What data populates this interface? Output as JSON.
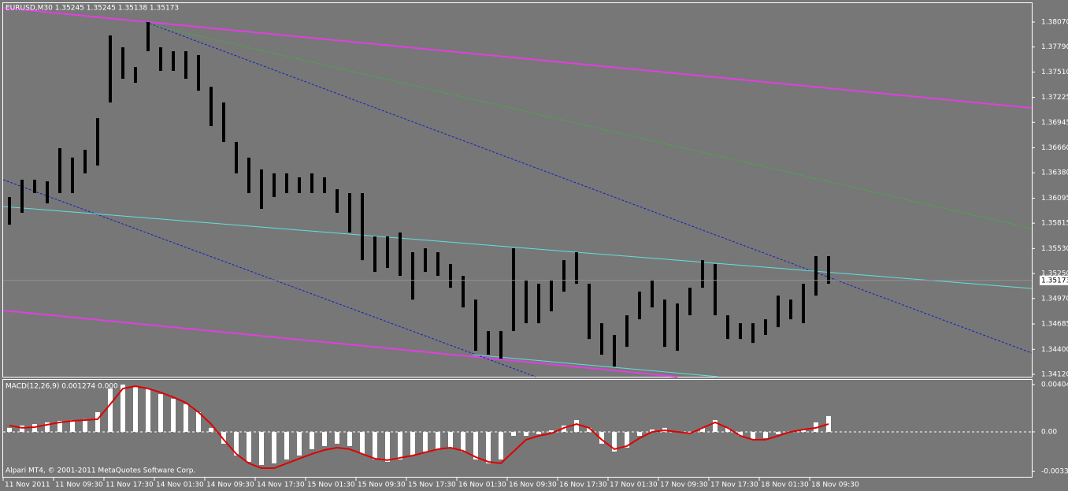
{
  "chart_data": [
    {
      "type": "range",
      "title": "EURUSD,M30  1.35245 1.35245 1.35138 1.35173",
      "color": "#000000",
      "categories": [
        "11 Nov 2011",
        null,
        null,
        null,
        "11 Nov 09:30",
        null,
        null,
        null,
        "11 Nov 17:30",
        null,
        null,
        null,
        "14 Nov 01:30",
        null,
        null,
        null,
        "14 Nov 09:30",
        null,
        null,
        null,
        "14 Nov 17:30",
        null,
        null,
        null,
        "15 Nov 01:30",
        null,
        null,
        null,
        "15 Nov 09:30",
        null,
        null,
        null,
        "15 Nov 17:30",
        null,
        null,
        null,
        "16 Nov 01:30",
        null,
        null,
        null,
        "16 Nov 09:30",
        null,
        null,
        null,
        "16 Nov 17:30",
        null,
        null,
        null,
        "17 Nov 01:30",
        null,
        null,
        null,
        "17 Nov 09:30",
        null,
        null,
        null,
        "17 Nov 17:30",
        null,
        null,
        null,
        "18 Nov 01:30",
        null,
        null,
        null,
        "18 Nov 09:30",
        null
      ],
      "high": [
        1.36108,
        1.36302,
        1.36302,
        1.36284,
        1.36656,
        1.3655,
        1.36638,
        1.36992,
        1.3792,
        1.37787,
        1.37566,
        1.3807,
        1.37787,
        1.37743,
        1.37743,
        1.37699,
        1.37345,
        1.37168,
        1.36726,
        1.3655,
        1.36417,
        1.36373,
        1.36373,
        1.36329,
        1.36373,
        1.36329,
        1.36196,
        1.36152,
        1.36152,
        1.35666,
        1.35666,
        1.3571,
        1.35489,
        1.35533,
        1.35489,
        1.35356,
        1.35224,
        1.34958,
        1.34605,
        1.34605,
        1.35533,
        1.35179,
        1.35135,
        1.35179,
        1.354,
        1.35489,
        1.35135,
        1.34693,
        1.34561,
        1.34782,
        1.35047,
        1.35179,
        1.34958,
        1.34914,
        1.35091,
        1.354,
        1.35356,
        1.34782,
        1.34693,
        1.34693,
        1.34737,
        1.35003,
        1.34958,
        1.35135,
        1.35445,
        1.35445
      ],
      "low": [
        1.35798,
        1.35931,
        1.36152,
        1.36037,
        1.36152,
        1.36152,
        1.36373,
        1.36461,
        1.37168,
        1.37434,
        1.37389,
        1.37743,
        1.37522,
        1.37522,
        1.37434,
        1.37301,
        1.36903,
        1.36726,
        1.36373,
        1.36152,
        1.35975,
        1.36108,
        1.36152,
        1.36152,
        1.36152,
        1.36152,
        1.35931,
        1.3571,
        1.354,
        1.35268,
        1.35312,
        1.35224,
        1.34958,
        1.35268,
        1.35224,
        1.35091,
        1.3487,
        1.34384,
        1.3434,
        1.34295,
        1.34605,
        1.34693,
        1.34693,
        1.34826,
        1.35047,
        1.35135,
        1.34516,
        1.3434,
        1.34207,
        1.34428,
        1.34737,
        1.3487,
        1.34428,
        1.34384,
        1.34782,
        1.35091,
        1.34782,
        1.34516,
        1.34516,
        1.34472,
        1.34561,
        1.34649,
        1.34737,
        1.34693,
        1.35003,
        1.35135
      ],
      "last_price": 1.35173,
      "ylim": [
        1.34093,
        1.38282
      ],
      "yticks": [
        {
          "value": 1.3807,
          "label": "1.38070"
        },
        {
          "value": 1.3779,
          "label": "1.37790"
        },
        {
          "value": 1.3751,
          "label": "1.37510"
        },
        1.37225,
        1.36945,
        {
          "value": 1.3666,
          "label": "1.36660"
        },
        {
          "value": 1.3638,
          "label": "1.36380"
        },
        1.36095,
        1.35815,
        {
          "value": 1.3553,
          "label": "1.35530"
        },
        {
          "value": 1.3525,
          "label": "1.35250"
        },
        {
          "value": 1.3497,
          "label": "1.34970"
        },
        1.34685,
        {
          "value": 1.344,
          "label": "1.34400"
        },
        {
          "value": 1.3412,
          "label": "1.34120"
        }
      ]
    },
    {
      "type": "macd",
      "title": "MACD(12,26,9) 0.001274 0.000",
      "series": [
        {
          "name": "MACD",
          "color": "#ffffff",
          "values": [
            0.00034,
            0.00054,
            0.00067,
            0.00081,
            0.00094,
            0.00101,
            0.00108,
            0.00168,
            0.0037,
            0.00404,
            0.0039,
            0.0037,
            0.00323,
            0.00283,
            0.00236,
            0.00168,
            0.00034,
            -0.00101,
            -0.00202,
            -0.00256,
            -0.00283,
            -0.00269,
            -0.00236,
            -0.00202,
            -0.00148,
            -0.00121,
            -0.00101,
            -0.00121,
            -0.00188,
            -0.00236,
            -0.00256,
            -0.00236,
            -0.00202,
            -0.00168,
            -0.00148,
            -0.00135,
            -0.00168,
            -0.00236,
            -0.00269,
            -0.00236,
            -0.00034,
            -0.00034,
            -0.0002,
            0.00013,
            0.00054,
            0.00101,
            0.00034,
            -0.00101,
            -0.00168,
            -0.00135,
            -0.00034,
            0.0002,
            0.00034,
            0,
            -0.00013,
            0.00034,
            0.00101,
            0.00034,
            -0.00034,
            -0.00067,
            -0.00054,
            -0.0002,
            0,
            0.0002,
            0.00081,
            0.00135
          ]
        },
        {
          "name": "Signal",
          "color": "#e00000",
          "values": [
            0.00054,
            0.00034,
            0.0004,
            0.00061,
            0.00081,
            0.00094,
            0.00101,
            0.00108,
            0.00236,
            0.0037,
            0.0039,
            0.0037,
            0.00337,
            0.00296,
            0.00249,
            0.00168,
            0.00067,
            -0.00067,
            -0.00188,
            -0.00269,
            -0.0031,
            -0.0031,
            -0.00269,
            -0.00229,
            -0.00188,
            -0.00155,
            -0.00135,
            -0.00148,
            -0.00188,
            -0.00229,
            -0.00242,
            -0.00222,
            -0.00202,
            -0.00175,
            -0.00148,
            -0.00135,
            -0.00162,
            -0.00215,
            -0.00256,
            -0.00269,
            -0.00168,
            -0.00067,
            -0.00034,
            -0.00013,
            0.00034,
            0.00067,
            0.00034,
            -0.00067,
            -0.00148,
            -0.00121,
            -0.00054,
            0,
            0.00013,
            0,
            -0.00013,
            0.00034,
            0.00081,
            0.00034,
            -0.00034,
            -0.00067,
            -0.00067,
            -0.00034,
            0,
            0.0002,
            0.00034,
            0.00067
          ]
        }
      ],
      "ylim": [
        -0.00384,
        0.00444
      ],
      "yticks": [
        0.00404,
        {
          "value": 0,
          "label": "0.00"
        },
        -0.00338
      ]
    }
  ],
  "footer": "Alpari MT4, © 2001-2011 MetaQuotes Software Corp."
}
